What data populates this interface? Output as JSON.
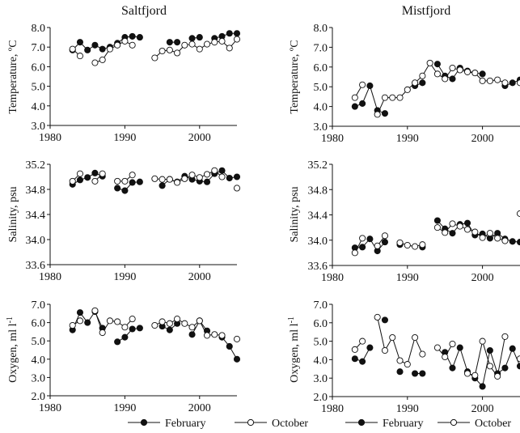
{
  "titles": [
    "Saltfjord",
    "Mistfjord"
  ],
  "legend": [
    {
      "name": "February",
      "marker": "filled-circle"
    },
    {
      "name": "October",
      "marker": "open-circle"
    }
  ],
  "chart_data": [
    {
      "type": "line",
      "panel": "Saltfjord temperature",
      "ylabel": "Temperature, ºC",
      "xlim": [
        1980,
        2005
      ],
      "ylim": [
        3.0,
        8.0
      ],
      "xticks": [
        "1980",
        "1990",
        "2000"
      ],
      "yticks": [
        "3.0",
        "4.0",
        "5.0",
        "6.0",
        "7.0",
        "8.0"
      ],
      "x": [
        1983,
        1984,
        1985,
        1986,
        1987,
        1988,
        1989,
        1990,
        1991,
        1992,
        1993,
        1994,
        1995,
        1996,
        1997,
        1998,
        1999,
        2000,
        2001,
        2002,
        2003,
        2004,
        2005
      ],
      "series": [
        {
          "name": "February",
          "values": [
            6.85,
            7.25,
            6.85,
            7.1,
            6.9,
            7.0,
            7.2,
            7.5,
            7.55,
            7.5,
            null,
            null,
            null,
            7.25,
            7.25,
            null,
            7.45,
            7.5,
            null,
            7.45,
            7.55,
            7.7,
            7.7
          ]
        },
        {
          "name": "October",
          "values": [
            6.9,
            6.55,
            null,
            6.2,
            6.35,
            6.9,
            7.1,
            7.3,
            7.1,
            null,
            null,
            6.45,
            6.8,
            6.85,
            6.7,
            7.1,
            7.15,
            6.9,
            7.15,
            7.25,
            7.3,
            6.95,
            7.4
          ]
        }
      ]
    },
    {
      "type": "line",
      "panel": "Mistfjord temperature",
      "ylabel": "Temperature, ºC",
      "xlim": [
        1980,
        2005
      ],
      "ylim": [
        3.0,
        8.0
      ],
      "xticks": [
        "1980",
        "1990",
        "2000"
      ],
      "yticks": [
        "3.0",
        "4.0",
        "5.0",
        "6.0",
        "7.0",
        "8.0"
      ],
      "x": [
        1983,
        1984,
        1985,
        1986,
        1987,
        1988,
        1989,
        1990,
        1991,
        1992,
        1993,
        1994,
        1995,
        1996,
        1997,
        1998,
        1999,
        2000,
        2001,
        2002,
        2003,
        2004,
        2005
      ],
      "series": [
        {
          "name": "February",
          "values": [
            4.0,
            4.15,
            5.05,
            3.8,
            3.65,
            null,
            null,
            null,
            5.05,
            5.2,
            null,
            6.15,
            5.55,
            5.4,
            5.95,
            5.8,
            5.7,
            5.65,
            null,
            null,
            5.05,
            5.2,
            5.35
          ]
        },
        {
          "name": "October",
          "values": [
            4.45,
            5.1,
            null,
            3.6,
            4.45,
            4.45,
            4.45,
            4.85,
            5.2,
            5.55,
            6.2,
            5.65,
            5.4,
            5.95,
            5.85,
            5.75,
            5.7,
            5.3,
            5.3,
            5.35,
            5.2,
            null,
            5.2
          ]
        }
      ]
    },
    {
      "type": "line",
      "panel": "Saltfjord salinity",
      "ylabel": "Salinity, psu",
      "xlim": [
        1980,
        2005
      ],
      "ylim": [
        33.6,
        35.2
      ],
      "xticks": [
        "1980",
        "1990",
        "2000"
      ],
      "yticks": [
        "33.6",
        "34.0",
        "34.4",
        "34.8",
        "35.2"
      ],
      "x": [
        1983,
        1984,
        1985,
        1986,
        1987,
        1988,
        1989,
        1990,
        1991,
        1992,
        1993,
        1994,
        1995,
        1996,
        1997,
        1998,
        1999,
        2000,
        2001,
        2002,
        2003,
        2004,
        2005
      ],
      "series": [
        {
          "name": "February",
          "values": [
            34.88,
            34.95,
            34.99,
            35.06,
            35.01,
            null,
            34.82,
            34.78,
            34.91,
            34.92,
            null,
            null,
            34.86,
            34.96,
            34.92,
            35.01,
            34.96,
            34.93,
            34.92,
            35.05,
            35.1,
            34.98,
            35.0
          ]
        },
        {
          "name": "October",
          "values": [
            34.93,
            35.05,
            null,
            34.93,
            35.05,
            null,
            34.93,
            34.93,
            35.03,
            null,
            null,
            34.97,
            34.96,
            34.96,
            34.91,
            34.97,
            35.03,
            34.99,
            35.04,
            35.1,
            35.0,
            null,
            34.82
          ]
        }
      ]
    },
    {
      "type": "line",
      "panel": "Mistfjord salinity",
      "ylabel": "Salinity, psu",
      "xlim": [
        1980,
        2005
      ],
      "ylim": [
        33.6,
        35.2
      ],
      "xticks": [
        "1980",
        "1990",
        "2000"
      ],
      "yticks": [
        "33.6",
        "34.0",
        "34.4",
        "34.8",
        "35.2"
      ],
      "x": [
        1983,
        1984,
        1985,
        1986,
        1987,
        1988,
        1989,
        1990,
        1991,
        1992,
        1993,
        1994,
        1995,
        1996,
        1997,
        1998,
        1999,
        2000,
        2001,
        2002,
        2003,
        2004,
        2005
      ],
      "series": [
        {
          "name": "February",
          "values": [
            33.88,
            33.89,
            34.02,
            33.83,
            33.97,
            null,
            33.93,
            null,
            null,
            33.89,
            null,
            34.31,
            34.18,
            34.11,
            34.25,
            34.27,
            34.08,
            34.1,
            34.03,
            34.11,
            34.02,
            33.98,
            33.97
          ]
        },
        {
          "name": "October",
          "values": [
            33.8,
            34.03,
            null,
            33.91,
            34.07,
            null,
            33.96,
            33.92,
            33.9,
            33.93,
            null,
            34.2,
            34.12,
            34.26,
            34.22,
            34.17,
            34.13,
            34.04,
            34.11,
            34.03,
            33.99,
            null,
            34.42
          ]
        }
      ]
    },
    {
      "type": "line",
      "panel": "Saltfjord oxygen",
      "ylabel": "Oxygen, ml l-1",
      "xlim": [
        1980,
        2005
      ],
      "ylim": [
        2.0,
        7.0
      ],
      "xticks": [
        "1980",
        "1990",
        "2000"
      ],
      "yticks": [
        "2.0",
        "3.0",
        "4.0",
        "5.0",
        "6.0",
        "7.0"
      ],
      "x": [
        1983,
        1984,
        1985,
        1986,
        1987,
        1988,
        1989,
        1990,
        1991,
        1992,
        1993,
        1994,
        1995,
        1996,
        1997,
        1998,
        1999,
        2000,
        2001,
        2002,
        2003,
        2004,
        2005
      ],
      "series": [
        {
          "name": "February",
          "values": [
            5.6,
            6.55,
            6.0,
            6.6,
            5.7,
            null,
            4.95,
            5.2,
            5.65,
            5.7,
            null,
            null,
            5.8,
            5.6,
            5.95,
            null,
            5.35,
            6.1,
            5.55,
            null,
            5.2,
            4.7,
            4.0
          ]
        },
        {
          "name": "October",
          "values": [
            5.85,
            6.1,
            null,
            6.65,
            5.45,
            6.1,
            6.05,
            5.75,
            6.2,
            null,
            null,
            5.85,
            6.05,
            5.95,
            6.2,
            5.95,
            5.75,
            6.1,
            5.3,
            5.35,
            5.3,
            null,
            5.1
          ]
        }
      ]
    },
    {
      "type": "line",
      "panel": "Mistfjord oxygen",
      "ylabel": "Oxygen, ml l-1",
      "xlim": [
        1980,
        2005
      ],
      "ylim": [
        2.0,
        7.0
      ],
      "xticks": [
        "1980",
        "1990",
        "2000"
      ],
      "yticks": [
        "2.0",
        "3.0",
        "4.0",
        "5.0",
        "6.0",
        "7.0"
      ],
      "x": [
        1983,
        1984,
        1985,
        1986,
        1987,
        1988,
        1989,
        1990,
        1991,
        1992,
        1993,
        1994,
        1995,
        1996,
        1997,
        1998,
        1999,
        2000,
        2001,
        2002,
        2003,
        2004,
        2005
      ],
      "series": [
        {
          "name": "February",
          "values": [
            4.05,
            3.9,
            4.65,
            null,
            6.15,
            null,
            3.35,
            null,
            3.25,
            3.25,
            null,
            null,
            4.4,
            3.55,
            4.65,
            3.35,
            3.0,
            2.55,
            4.5,
            3.25,
            3.55,
            4.6,
            3.65
          ]
        },
        {
          "name": "October",
          "values": [
            4.55,
            5.0,
            null,
            6.3,
            4.5,
            5.2,
            3.95,
            3.75,
            5.2,
            4.3,
            null,
            4.65,
            4.15,
            4.85,
            null,
            3.25,
            3.15,
            5.0,
            3.65,
            3.1,
            5.25,
            null,
            4.05
          ]
        }
      ]
    }
  ]
}
